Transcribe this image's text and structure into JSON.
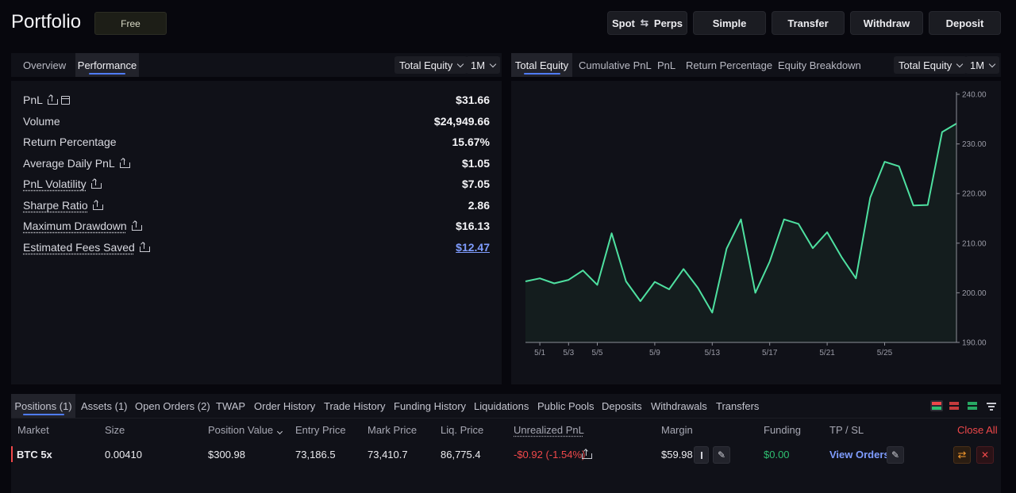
{
  "header": {
    "title": "Portfolio",
    "badge": "Free",
    "spot_label": "Spot",
    "perps_label": "Perps",
    "buttons": [
      "Simple",
      "Transfer",
      "Withdraw",
      "Deposit"
    ]
  },
  "left_panel": {
    "tabs": [
      "Overview",
      "Performance"
    ],
    "active_tab": "Performance",
    "equity_dropdown": "Total Equity",
    "range_dropdown": "1M",
    "metrics": [
      {
        "label": "PnL",
        "value": "$31.66"
      },
      {
        "label": "Volume",
        "value": "$24,949.66"
      },
      {
        "label": "Return Percentage",
        "value": "15.67%"
      },
      {
        "label": "Average Daily PnL",
        "value": "$1.05"
      },
      {
        "label": "PnL Volatility",
        "value": "$7.05"
      },
      {
        "label": "Sharpe Ratio",
        "value": "2.86"
      },
      {
        "label": "Maximum Drawdown",
        "value": "$16.13"
      },
      {
        "label": "Estimated Fees Saved",
        "value": "$12.47"
      }
    ]
  },
  "right_panel": {
    "tabs": [
      "Total Equity",
      "Cumulative PnL",
      "PnL",
      "Return Percentage",
      "Equity Breakdown"
    ],
    "active_tab": "Total Equity",
    "equity_dropdown": "Total Equity",
    "range_dropdown": "1M"
  },
  "chart_data": {
    "type": "area",
    "x_ticks": [
      "5/1",
      "5/3",
      "5/5",
      "5/9",
      "5/13",
      "5/17",
      "5/21",
      "5/25"
    ],
    "y_ticks": [
      "240.00",
      "230.00",
      "220.00",
      "210.00",
      "200.00",
      "190.00"
    ],
    "ylim": [
      190,
      240
    ],
    "series": [
      {
        "values": [
          202.3,
          202.9,
          201.9,
          202.6,
          204.5,
          201.6,
          212.0,
          202.3,
          198.3,
          202.2,
          200.7,
          204.8,
          201.0,
          196.0,
          208.9,
          214.8,
          200.0,
          206.3,
          214.8,
          213.9,
          209.0,
          212.2,
          207.2,
          202.9,
          219.2,
          226.4,
          225.5,
          217.6,
          217.7,
          232.4,
          234.1
        ]
      }
    ],
    "line_color": "#4ee0a0",
    "grid": false
  },
  "bottom": {
    "tabs": [
      "Positions (1)",
      "Assets (1)",
      "Open Orders (2)",
      "TWAP",
      "Order History",
      "Trade History",
      "Funding History",
      "Liquidations",
      "Public Pools",
      "Deposits",
      "Withdrawals",
      "Transfers"
    ],
    "active_tab": "Positions (1)",
    "columns": {
      "market": "Market",
      "size": "Size",
      "position_value": "Position Value",
      "entry_price": "Entry Price",
      "mark_price": "Mark Price",
      "liq_price": "Liq. Price",
      "unrealized_pnl": "Unrealized PnL",
      "margin": "Margin",
      "funding": "Funding",
      "tp_sl": "TP / SL",
      "close_all": "Close All"
    },
    "row": {
      "market": "BTC 5x",
      "size": "0.00410",
      "position_value": "$300.98",
      "entry_price": "73,186.5",
      "mark_price": "73,410.7",
      "liq_price": "86,775.4",
      "unrealized_pnl": "-$0.92 (-1.54%)",
      "margin": "$59.98",
      "funding": "$0.00",
      "tp_sl": "View Orders"
    },
    "colors": {
      "negative": "#f0484a",
      "positive": "#2fbf71",
      "link": "#7f9dff",
      "close_all": "#f0484a"
    }
  }
}
